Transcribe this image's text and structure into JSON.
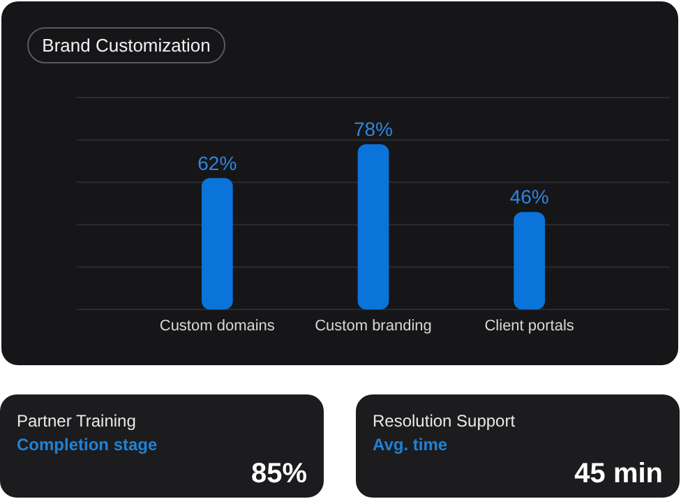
{
  "chart_data": [
    {
      "type": "bar",
      "title": "Brand Customization",
      "categories": [
        "Custom domains",
        "Custom branding",
        "Client portals"
      ],
      "values": [
        62,
        78,
        46
      ],
      "color": "#0a74da",
      "data_labels": true,
      "value_labels": [
        "62%",
        "78%",
        "46%"
      ],
      "ylim": [
        0,
        100
      ],
      "yticks": [
        {
          "value": 0,
          "label": null
        },
        {
          "value": 20,
          "label": null
        },
        {
          "value": 40,
          "label": null
        },
        {
          "value": 60,
          "label": null
        },
        {
          "value": 80,
          "label": null
        },
        {
          "value": 100,
          "label": null
        }
      ],
      "grid": "y",
      "tick_labels": "x"
    },
    {
      "type": "other",
      "title": "Partner Training",
      "subtitle": "Completion stage",
      "annotations": [
        "85%"
      ]
    },
    {
      "type": "other",
      "title": "Resolution Support",
      "subtitle": "Avg. time",
      "annotations": [
        "45 min"
      ]
    }
  ]
}
